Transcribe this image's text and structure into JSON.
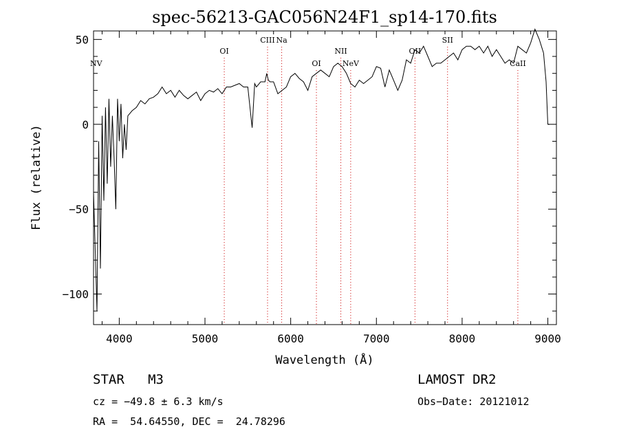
{
  "chart_data": {
    "type": "line",
    "title": "spec-56213-GAC056N24F1_sp14-170.fits",
    "xlabel": "Wavelength (Å)",
    "ylabel": "Flux (relative)",
    "xlim": [
      3700,
      9100
    ],
    "ylim": [
      -118,
      55
    ],
    "x_ticks": [
      4000,
      5000,
      6000,
      7000,
      8000,
      9000
    ],
    "y_ticks": [
      50,
      0,
      -50,
      -100
    ],
    "grid": false,
    "line_color": "#000000",
    "marker_color": "#cc0000",
    "series": [
      {
        "x": [
          3700,
          3720,
          3740,
          3760,
          3780,
          3800,
          3820,
          3840,
          3860,
          3880,
          3900,
          3920,
          3940,
          3960,
          3980,
          4000,
          4020,
          4040,
          4060,
          4080,
          4100,
          4150,
          4200,
          4250,
          4300,
          4350,
          4400,
          4450,
          4500,
          4550,
          4600,
          4650,
          4700,
          4750,
          4800,
          4850,
          4900,
          4950,
          5000,
          5050,
          5100,
          5150,
          5200,
          5250,
          5300,
          5350,
          5400,
          5450,
          5500,
          5550,
          5580,
          5600,
          5650,
          5700,
          5720,
          5740,
          5760,
          5800,
          5850,
          5900,
          5950,
          6000,
          6050,
          6100,
          6150,
          6200,
          6250,
          6300,
          6350,
          6400,
          6450,
          6500,
          6550,
          6600,
          6650,
          6700,
          6750,
          6800,
          6850,
          6900,
          6950,
          7000,
          7050,
          7100,
          7150,
          7200,
          7250,
          7300,
          7350,
          7400,
          7450,
          7500,
          7550,
          7600,
          7650,
          7700,
          7750,
          7800,
          7850,
          7900,
          7950,
          8000,
          8050,
          8100,
          8150,
          8200,
          8250,
          8300,
          8350,
          8400,
          8450,
          8500,
          8550,
          8600,
          8650,
          8700,
          8750,
          8800,
          8850,
          8900,
          8950,
          8980,
          9000,
          9020
        ],
        "y": [
          -40,
          -75,
          -110,
          -10,
          -85,
          5,
          -45,
          10,
          -35,
          15,
          -25,
          5,
          -20,
          -50,
          15,
          -10,
          12,
          -20,
          0,
          -15,
          5,
          8,
          10,
          14,
          12,
          15,
          16,
          18,
          22,
          18,
          20,
          16,
          20,
          17,
          15,
          17,
          19,
          14,
          18,
          20,
          19,
          21,
          18,
          22,
          22,
          23,
          24,
          22,
          22,
          -2,
          24,
          22,
          25,
          25,
          30,
          26,
          25,
          25,
          18,
          20,
          22,
          28,
          30,
          27,
          25,
          20,
          28,
          30,
          32,
          30,
          28,
          34,
          36,
          34,
          30,
          24,
          22,
          26,
          24,
          26,
          28,
          34,
          33,
          22,
          32,
          26,
          20,
          26,
          38,
          36,
          44,
          42,
          46,
          40,
          34,
          36,
          36,
          38,
          40,
          42,
          38,
          44,
          46,
          46,
          44,
          46,
          42,
          46,
          40,
          44,
          40,
          36,
          38,
          36,
          46,
          44,
          42,
          48,
          56,
          50,
          42,
          25,
          0,
          0
        ]
      }
    ],
    "line_labels": [
      {
        "label": "NV",
        "x": 3740,
        "tier": 3,
        "dotted": false
      },
      {
        "label": "OI",
        "x": 5225,
        "tier": 1,
        "dotted": true
      },
      {
        "label": "CIII",
        "x": 5730,
        "tier": 0,
        "dotted": true
      },
      {
        "label": "Na",
        "x": 5895,
        "tier": 0,
        "dotted": true
      },
      {
        "label": "OI",
        "x": 6300,
        "tier": 3,
        "dotted": true
      },
      {
        "label": "NII",
        "x": 6585,
        "tier": 1,
        "dotted": true
      },
      {
        "label": "NeV",
        "x": 6700,
        "tier": 2,
        "dotted": true
      },
      {
        "label": "OII",
        "x": 7450,
        "tier": 1,
        "dotted": true
      },
      {
        "label": "SII",
        "x": 7830,
        "tier": 0,
        "dotted": true
      },
      {
        "label": "CaII",
        "x": 8650,
        "tier": 3,
        "dotted": true
      }
    ]
  },
  "info": {
    "class_label": "STAR",
    "subclass": "M3",
    "survey": "LAMOST DR2",
    "cz": "cz = −49.8 ± 6.3 km/s",
    "obs_date": "Obs−Date: 20121012",
    "coords": "RA =  54.64550, DEC =  24.78296"
  }
}
